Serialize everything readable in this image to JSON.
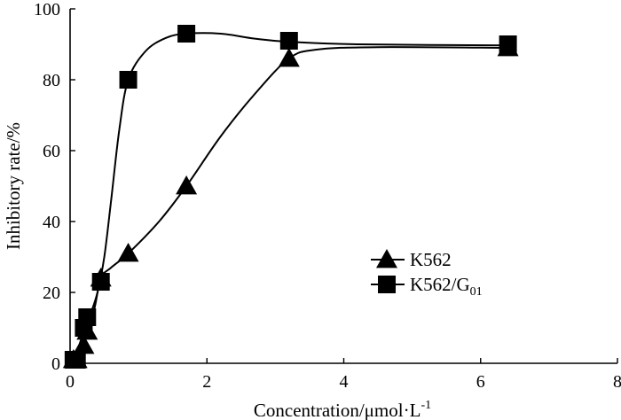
{
  "chart_data": {
    "type": "line",
    "title": "",
    "xlabel": "Concentration/μmol·L",
    "xlabel_superscript": "-1",
    "ylabel": "Inhibitory rate/%",
    "xlim": [
      0,
      8
    ],
    "ylim": [
      0,
      100
    ],
    "xticks": [
      0,
      2,
      4,
      6,
      8
    ],
    "yticks": [
      0,
      20,
      40,
      60,
      80,
      100
    ],
    "grid": false,
    "legend_position": "bottom-right",
    "series": [
      {
        "name": "K562",
        "label_main": "K562",
        "label_sub": "",
        "marker": "triangle",
        "x": [
          0.05,
          0.1,
          0.2,
          0.25,
          0.45,
          0.85,
          1.7,
          3.2,
          6.4
        ],
        "y": [
          1,
          1,
          5,
          9,
          24,
          31,
          50,
          86,
          89
        ],
        "curve": [
          [
            0.05,
            0
          ],
          [
            0.2,
            6
          ],
          [
            0.35,
            15
          ],
          [
            0.45,
            24
          ],
          [
            0.6,
            27
          ],
          [
            0.85,
            31
          ],
          [
            1.3,
            40
          ],
          [
            1.7,
            50
          ],
          [
            2.2,
            64
          ],
          [
            2.7,
            76
          ],
          [
            3.2,
            86
          ],
          [
            3.6,
            88.5
          ],
          [
            4.5,
            89.2
          ],
          [
            6.4,
            89
          ]
        ]
      },
      {
        "name": "K562/G01",
        "label_main": "K562/G",
        "label_sub": "01",
        "marker": "square",
        "x": [
          0.05,
          0.1,
          0.2,
          0.25,
          0.45,
          0.85,
          1.7,
          3.2,
          6.4
        ],
        "y": [
          1,
          1,
          10,
          13,
          23,
          80,
          93,
          91,
          90
        ],
        "curve": [
          [
            0.05,
            0
          ],
          [
            0.2,
            9
          ],
          [
            0.3,
            14
          ],
          [
            0.4,
            20
          ],
          [
            0.5,
            30
          ],
          [
            0.6,
            46
          ],
          [
            0.72,
            66
          ],
          [
            0.85,
            80
          ],
          [
            1.1,
            88
          ],
          [
            1.4,
            91.8
          ],
          [
            1.7,
            93
          ],
          [
            2.2,
            93
          ],
          [
            2.7,
            91.6
          ],
          [
            3.2,
            90.7
          ],
          [
            4.2,
            90
          ],
          [
            6.4,
            89.7
          ]
        ]
      }
    ]
  }
}
